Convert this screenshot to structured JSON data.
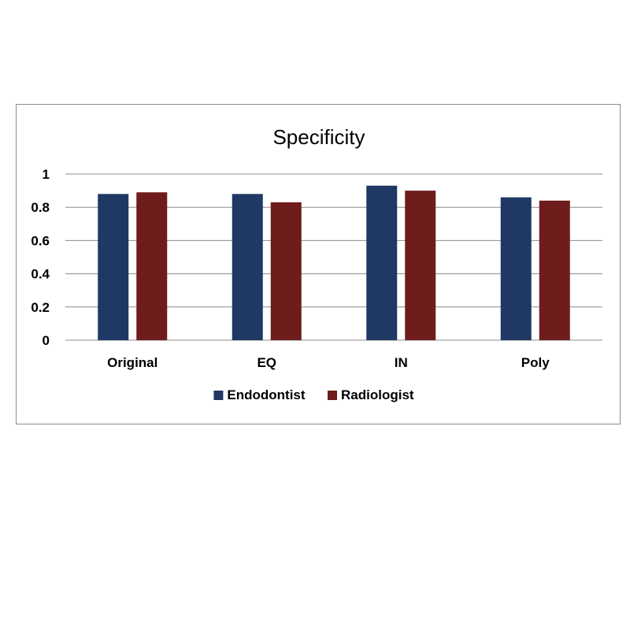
{
  "chart_data": {
    "type": "bar",
    "title": "Specificity",
    "categories": [
      "Original",
      "EQ",
      "IN",
      "Poly"
    ],
    "series": [
      {
        "name": "Endodontist",
        "values": [
          0.88,
          0.88,
          0.93,
          0.86
        ],
        "color": "#1f3864"
      },
      {
        "name": "Radiologist",
        "values": [
          0.89,
          0.83,
          0.9,
          0.84
        ],
        "color": "#6e1c1c"
      }
    ],
    "xlabel": "",
    "ylabel": "",
    "ylim": [
      0,
      1
    ],
    "yticks": [
      "0",
      "0.2",
      "0.4",
      "0.6",
      "0.8",
      "1"
    ],
    "grid": true,
    "legend_position": "bottom"
  }
}
